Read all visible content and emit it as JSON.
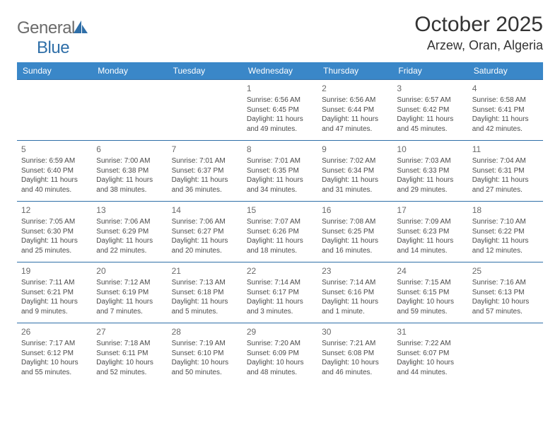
{
  "logo": {
    "textGray": "General",
    "textBlue": "Blue"
  },
  "title": "October 2025",
  "location": "Arzew, Oran, Algeria",
  "styling": {
    "header_bg": "#3a87c8",
    "header_text": "#ffffff",
    "row_border": "#2f6fa8",
    "body_text": "#4a4a4a",
    "daynum_text": "#6a6a6a",
    "title_text": "#333333",
    "logo_gray": "#6b6b6b",
    "logo_blue": "#2f6fa8",
    "page_bg": "#ffffff",
    "header_fontsize": 12,
    "daynum_fontsize": 12,
    "detail_fontsize": 10,
    "title_fontsize": 30,
    "location_fontsize": 18
  },
  "weekdays": [
    "Sunday",
    "Monday",
    "Tuesday",
    "Wednesday",
    "Thursday",
    "Friday",
    "Saturday"
  ],
  "weeks": [
    [
      null,
      null,
      null,
      {
        "n": "1",
        "sr": "6:56 AM",
        "ss": "6:45 PM",
        "dl": "11 hours and 49 minutes."
      },
      {
        "n": "2",
        "sr": "6:56 AM",
        "ss": "6:44 PM",
        "dl": "11 hours and 47 minutes."
      },
      {
        "n": "3",
        "sr": "6:57 AM",
        "ss": "6:42 PM",
        "dl": "11 hours and 45 minutes."
      },
      {
        "n": "4",
        "sr": "6:58 AM",
        "ss": "6:41 PM",
        "dl": "11 hours and 42 minutes."
      }
    ],
    [
      {
        "n": "5",
        "sr": "6:59 AM",
        "ss": "6:40 PM",
        "dl": "11 hours and 40 minutes."
      },
      {
        "n": "6",
        "sr": "7:00 AM",
        "ss": "6:38 PM",
        "dl": "11 hours and 38 minutes."
      },
      {
        "n": "7",
        "sr": "7:01 AM",
        "ss": "6:37 PM",
        "dl": "11 hours and 36 minutes."
      },
      {
        "n": "8",
        "sr": "7:01 AM",
        "ss": "6:35 PM",
        "dl": "11 hours and 34 minutes."
      },
      {
        "n": "9",
        "sr": "7:02 AM",
        "ss": "6:34 PM",
        "dl": "11 hours and 31 minutes."
      },
      {
        "n": "10",
        "sr": "7:03 AM",
        "ss": "6:33 PM",
        "dl": "11 hours and 29 minutes."
      },
      {
        "n": "11",
        "sr": "7:04 AM",
        "ss": "6:31 PM",
        "dl": "11 hours and 27 minutes."
      }
    ],
    [
      {
        "n": "12",
        "sr": "7:05 AM",
        "ss": "6:30 PM",
        "dl": "11 hours and 25 minutes."
      },
      {
        "n": "13",
        "sr": "7:06 AM",
        "ss": "6:29 PM",
        "dl": "11 hours and 22 minutes."
      },
      {
        "n": "14",
        "sr": "7:06 AM",
        "ss": "6:27 PM",
        "dl": "11 hours and 20 minutes."
      },
      {
        "n": "15",
        "sr": "7:07 AM",
        "ss": "6:26 PM",
        "dl": "11 hours and 18 minutes."
      },
      {
        "n": "16",
        "sr": "7:08 AM",
        "ss": "6:25 PM",
        "dl": "11 hours and 16 minutes."
      },
      {
        "n": "17",
        "sr": "7:09 AM",
        "ss": "6:23 PM",
        "dl": "11 hours and 14 minutes."
      },
      {
        "n": "18",
        "sr": "7:10 AM",
        "ss": "6:22 PM",
        "dl": "11 hours and 12 minutes."
      }
    ],
    [
      {
        "n": "19",
        "sr": "7:11 AM",
        "ss": "6:21 PM",
        "dl": "11 hours and 9 minutes."
      },
      {
        "n": "20",
        "sr": "7:12 AM",
        "ss": "6:19 PM",
        "dl": "11 hours and 7 minutes."
      },
      {
        "n": "21",
        "sr": "7:13 AM",
        "ss": "6:18 PM",
        "dl": "11 hours and 5 minutes."
      },
      {
        "n": "22",
        "sr": "7:14 AM",
        "ss": "6:17 PM",
        "dl": "11 hours and 3 minutes."
      },
      {
        "n": "23",
        "sr": "7:14 AM",
        "ss": "6:16 PM",
        "dl": "11 hours and 1 minute."
      },
      {
        "n": "24",
        "sr": "7:15 AM",
        "ss": "6:15 PM",
        "dl": "10 hours and 59 minutes."
      },
      {
        "n": "25",
        "sr": "7:16 AM",
        "ss": "6:13 PM",
        "dl": "10 hours and 57 minutes."
      }
    ],
    [
      {
        "n": "26",
        "sr": "7:17 AM",
        "ss": "6:12 PM",
        "dl": "10 hours and 55 minutes."
      },
      {
        "n": "27",
        "sr": "7:18 AM",
        "ss": "6:11 PM",
        "dl": "10 hours and 52 minutes."
      },
      {
        "n": "28",
        "sr": "7:19 AM",
        "ss": "6:10 PM",
        "dl": "10 hours and 50 minutes."
      },
      {
        "n": "29",
        "sr": "7:20 AM",
        "ss": "6:09 PM",
        "dl": "10 hours and 48 minutes."
      },
      {
        "n": "30",
        "sr": "7:21 AM",
        "ss": "6:08 PM",
        "dl": "10 hours and 46 minutes."
      },
      {
        "n": "31",
        "sr": "7:22 AM",
        "ss": "6:07 PM",
        "dl": "10 hours and 44 minutes."
      },
      null
    ]
  ]
}
